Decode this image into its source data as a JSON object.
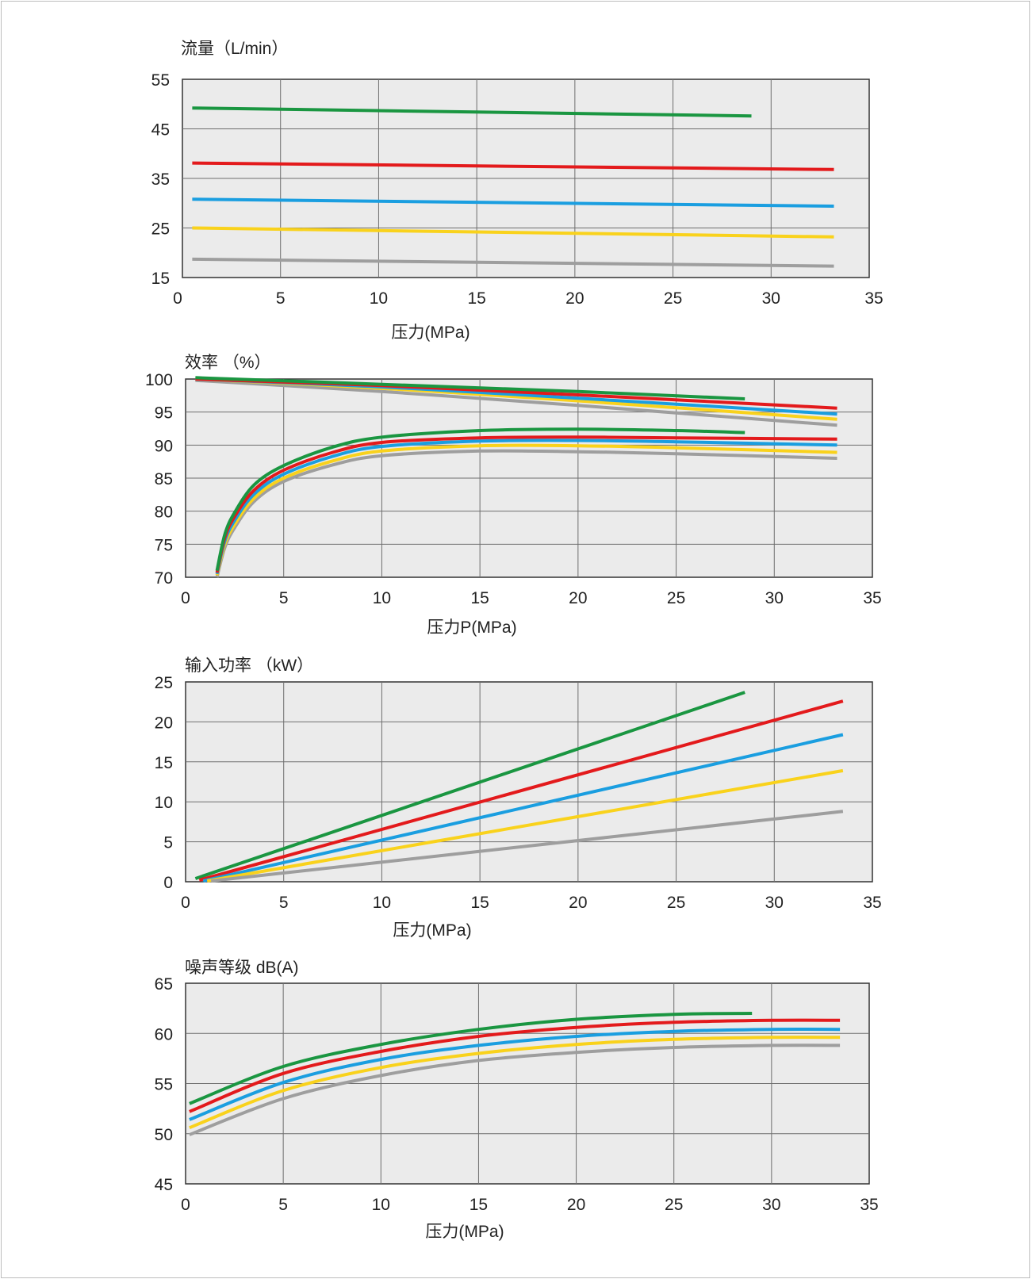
{
  "colors": {
    "plot_bg": "#ebebeb",
    "grid": "#6e6e6e",
    "series": [
      "#1a9641",
      "#e31a1c",
      "#1a9ee0",
      "#f9d21c",
      "#9e9e9e"
    ]
  },
  "chart_data": [
    {
      "type": "line",
      "title": "流量（L/min）",
      "xlabel": "压力(MPa)",
      "xlim": [
        0,
        35
      ],
      "ylim": [
        15,
        55
      ],
      "xticks": [
        "0",
        "5",
        "10",
        "15",
        "20",
        "25",
        "30",
        "35"
      ],
      "yticks": [
        "55",
        "45",
        "35",
        "25",
        "15"
      ],
      "grid": true,
      "series": [
        {
          "color": "#1a9641",
          "points": [
            [
              0.5,
              49.2
            ],
            [
              29.0,
              47.6
            ]
          ]
        },
        {
          "color": "#e31a1c",
          "points": [
            [
              0.5,
              38.1
            ],
            [
              33.2,
              36.8
            ]
          ]
        },
        {
          "color": "#1a9ee0",
          "points": [
            [
              0.5,
              30.8
            ],
            [
              33.2,
              29.4
            ]
          ]
        },
        {
          "color": "#f9d21c",
          "points": [
            [
              0.5,
              25.0
            ],
            [
              33.2,
              23.2
            ]
          ]
        },
        {
          "color": "#9e9e9e",
          "points": [
            [
              0.5,
              18.7
            ],
            [
              33.2,
              17.3
            ]
          ]
        }
      ]
    },
    {
      "type": "line",
      "title": "效率 （%）",
      "xlabel": "压力P(MPa)",
      "xlim": [
        0,
        35
      ],
      "ylim": [
        70,
        100
      ],
      "xticks": [
        "0",
        "5",
        "10",
        "15",
        "20",
        "25",
        "30",
        "35"
      ],
      "yticks": [
        "100",
        "95",
        "90",
        "85",
        "80",
        "75",
        "70"
      ],
      "grid": true,
      "series": [
        {
          "color": "#9e9e9e",
          "points": [
            [
              0.5,
              99.8
            ],
            [
              10,
              98.1
            ],
            [
              20,
              96.0
            ],
            [
              33.2,
              93.0
            ]
          ]
        },
        {
          "color": "#f9d21c",
          "points": [
            [
              0.5,
              100.0
            ],
            [
              10,
              98.6
            ],
            [
              20,
              96.7
            ],
            [
              33.2,
              93.9
            ]
          ]
        },
        {
          "color": "#1a9ee0",
          "points": [
            [
              0.5,
              100.0
            ],
            [
              10,
              98.8
            ],
            [
              20,
              97.1
            ],
            [
              33.2,
              94.7
            ]
          ]
        },
        {
          "color": "#e31a1c",
          "points": [
            [
              0.5,
              100.0
            ],
            [
              10,
              99.0
            ],
            [
              20,
              97.6
            ],
            [
              33.2,
              95.6
            ]
          ]
        },
        {
          "color": "#1a9641",
          "points": [
            [
              0.5,
              100.2
            ],
            [
              10,
              99.2
            ],
            [
              20,
              98.1
            ],
            [
              28.5,
              97.0
            ]
          ]
        },
        {
          "color": "#9e9e9e",
          "points": [
            [
              1.6,
              70.0
            ],
            [
              2.0,
              74.5
            ],
            [
              2.5,
              77.5
            ],
            [
              3.5,
              81.5
            ],
            [
              5,
              84.5
            ],
            [
              7.5,
              87.0
            ],
            [
              10,
              88.4
            ],
            [
              15,
              89.1
            ],
            [
              20,
              89.0
            ],
            [
              25,
              88.7
            ],
            [
              33.2,
              88.0
            ]
          ]
        },
        {
          "color": "#f9d21c",
          "points": [
            [
              1.6,
              70.3
            ],
            [
              2.0,
              75.0
            ],
            [
              2.5,
              78.0
            ],
            [
              3.5,
              82.0
            ],
            [
              5,
              85.0
            ],
            [
              7.5,
              87.6
            ],
            [
              10,
              89.1
            ],
            [
              15,
              89.9
            ],
            [
              20,
              89.9
            ],
            [
              25,
              89.6
            ],
            [
              33.2,
              88.9
            ]
          ]
        },
        {
          "color": "#1a9ee0",
          "points": [
            [
              1.6,
              70.5
            ],
            [
              2.0,
              75.5
            ],
            [
              2.5,
              78.6
            ],
            [
              3.5,
              82.6
            ],
            [
              5,
              85.6
            ],
            [
              7.5,
              88.3
            ],
            [
              10,
              89.8
            ],
            [
              15,
              90.6
            ],
            [
              20,
              90.7
            ],
            [
              25,
              90.5
            ],
            [
              33.2,
              90.0
            ]
          ]
        },
        {
          "color": "#e31a1c",
          "points": [
            [
              1.6,
              70.7
            ],
            [
              2.0,
              76.0
            ],
            [
              2.5,
              79.2
            ],
            [
              3.5,
              83.2
            ],
            [
              5,
              86.2
            ],
            [
              7.5,
              88.9
            ],
            [
              10,
              90.4
            ],
            [
              15,
              91.1
            ],
            [
              20,
              91.2
            ],
            [
              25,
              91.1
            ],
            [
              33.2,
              90.9
            ]
          ]
        },
        {
          "color": "#1a9641",
          "points": [
            [
              1.6,
              71.0
            ],
            [
              2.0,
              76.5
            ],
            [
              2.5,
              79.8
            ],
            [
              3.5,
              84.0
            ],
            [
              5,
              86.9
            ],
            [
              7.5,
              89.7
            ],
            [
              10,
              91.2
            ],
            [
              15,
              92.2
            ],
            [
              20,
              92.4
            ],
            [
              25,
              92.2
            ],
            [
              28.5,
              91.9
            ]
          ]
        }
      ]
    },
    {
      "type": "line",
      "title": "输入功率 （kW）",
      "xlabel": "压力(MPa)",
      "xlim": [
        0,
        35
      ],
      "ylim": [
        0,
        25
      ],
      "xticks": [
        "0",
        "5",
        "10",
        "15",
        "20",
        "25",
        "30",
        "35"
      ],
      "yticks": [
        "25",
        "20",
        "15",
        "10",
        "5",
        "0"
      ],
      "grid": true,
      "series": [
        {
          "color": "#1a9641",
          "points": [
            [
              0.5,
              0.4
            ],
            [
              28.5,
              23.7
            ]
          ]
        },
        {
          "color": "#e31a1c",
          "points": [
            [
              0.7,
              0.2
            ],
            [
              33.5,
              22.6
            ]
          ]
        },
        {
          "color": "#1a9ee0",
          "points": [
            [
              0.9,
              0.1
            ],
            [
              33.5,
              18.4
            ]
          ]
        },
        {
          "color": "#f9d21c",
          "points": [
            [
              1.1,
              0.1
            ],
            [
              33.5,
              13.9
            ]
          ]
        },
        {
          "color": "#9e9e9e",
          "points": [
            [
              1.3,
              0.1
            ],
            [
              33.5,
              8.8
            ]
          ]
        }
      ]
    },
    {
      "type": "line",
      "title": "噪声等级 dB(A)",
      "xlabel": "压力(MPa)",
      "xlim": [
        0,
        35
      ],
      "ylim": [
        45,
        65
      ],
      "xticks": [
        "0",
        "5",
        "10",
        "15",
        "20",
        "25",
        "30",
        "35"
      ],
      "yticks": [
        "65",
        "60",
        "55",
        "50",
        "45"
      ],
      "grid": true,
      "series": [
        {
          "color": "#1a9641",
          "points": [
            [
              0.2,
              53.0
            ],
            [
              5,
              56.7
            ],
            [
              10,
              58.9
            ],
            [
              15,
              60.4
            ],
            [
              20,
              61.4
            ],
            [
              25,
              61.9
            ],
            [
              29,
              62.0
            ]
          ]
        },
        {
          "color": "#e31a1c",
          "points": [
            [
              0.2,
              52.2
            ],
            [
              5,
              56.0
            ],
            [
              10,
              58.2
            ],
            [
              15,
              59.7
            ],
            [
              20,
              60.6
            ],
            [
              25,
              61.1
            ],
            [
              30,
              61.3
            ],
            [
              33.5,
              61.3
            ]
          ]
        },
        {
          "color": "#1a9ee0",
          "points": [
            [
              0.2,
              51.4
            ],
            [
              5,
              55.1
            ],
            [
              10,
              57.4
            ],
            [
              15,
              58.8
            ],
            [
              20,
              59.7
            ],
            [
              25,
              60.2
            ],
            [
              30,
              60.4
            ],
            [
              33.5,
              60.4
            ]
          ]
        },
        {
          "color": "#f9d21c",
          "points": [
            [
              0.2,
              50.6
            ],
            [
              5,
              54.3
            ],
            [
              10,
              56.6
            ],
            [
              15,
              58.0
            ],
            [
              20,
              58.9
            ],
            [
              25,
              59.4
            ],
            [
              30,
              59.6
            ],
            [
              33.5,
              59.6
            ]
          ]
        },
        {
          "color": "#9e9e9e",
          "points": [
            [
              0.2,
              49.9
            ],
            [
              5,
              53.5
            ],
            [
              10,
              55.8
            ],
            [
              15,
              57.3
            ],
            [
              20,
              58.1
            ],
            [
              25,
              58.6
            ],
            [
              30,
              58.8
            ],
            [
              33.5,
              58.8
            ]
          ]
        }
      ]
    }
  ]
}
